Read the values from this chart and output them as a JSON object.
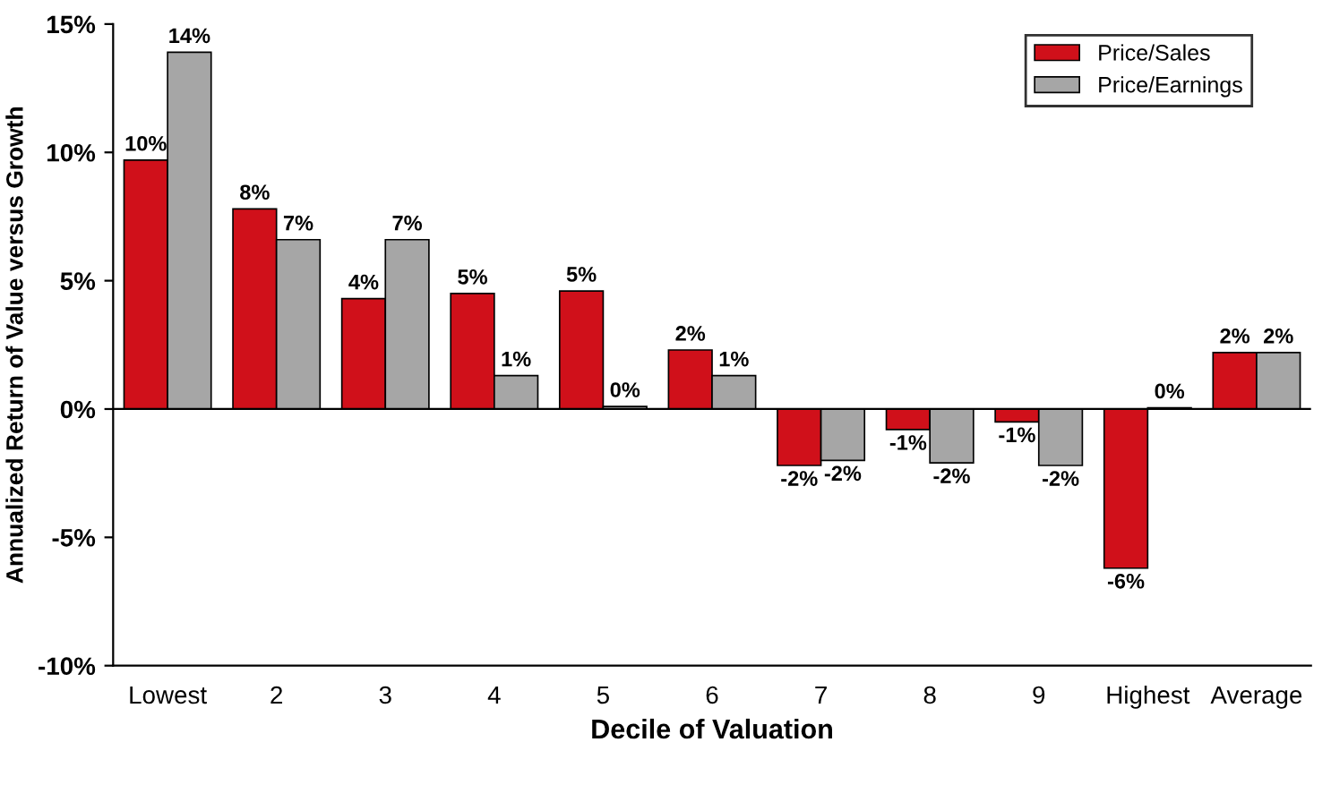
{
  "chart_data": {
    "type": "bar",
    "xlabel": "Decile of Valuation",
    "ylabel": "Annualized Return of Value versus Growth",
    "categories": [
      "Lowest",
      "2",
      "3",
      "4",
      "5",
      "6",
      "7",
      "8",
      "9",
      "Highest",
      "Average"
    ],
    "series": [
      {
        "name": "Price/Sales",
        "color": "#d0101a",
        "values": [
          9.7,
          7.8,
          4.3,
          4.5,
          4.6,
          2.3,
          -2.2,
          -0.8,
          -0.5,
          -6.2,
          2.2
        ],
        "value_labels": [
          "10%",
          "8%",
          "4%",
          "5%",
          "5%",
          "2%",
          "-2%",
          "-1%",
          "-1%",
          "-6%",
          "2%"
        ]
      },
      {
        "name": "Price/Earnings",
        "color": "#a6a6a6",
        "values": [
          13.9,
          6.6,
          6.6,
          1.3,
          0.1,
          1.3,
          -2.0,
          -2.1,
          -2.2,
          0.05,
          2.2
        ],
        "value_labels": [
          "14%",
          "7%",
          "7%",
          "1%",
          "0%",
          "1%",
          "-2%",
          "-2%",
          "-2%",
          "0%",
          "2%"
        ]
      }
    ],
    "ylim": [
      -10,
      15
    ],
    "yticks": [
      {
        "value": -10,
        "label": "-10%"
      },
      {
        "value": -5,
        "label": "-5%"
      },
      {
        "value": 0,
        "label": "0%"
      },
      {
        "value": 5,
        "label": "5%"
      },
      {
        "value": 10,
        "label": "10%"
      },
      {
        "value": 15,
        "label": "15%"
      }
    ],
    "ref_lines": [
      {
        "axis": "y",
        "value": 0,
        "color": "#000000"
      }
    ],
    "legend": "top right"
  }
}
